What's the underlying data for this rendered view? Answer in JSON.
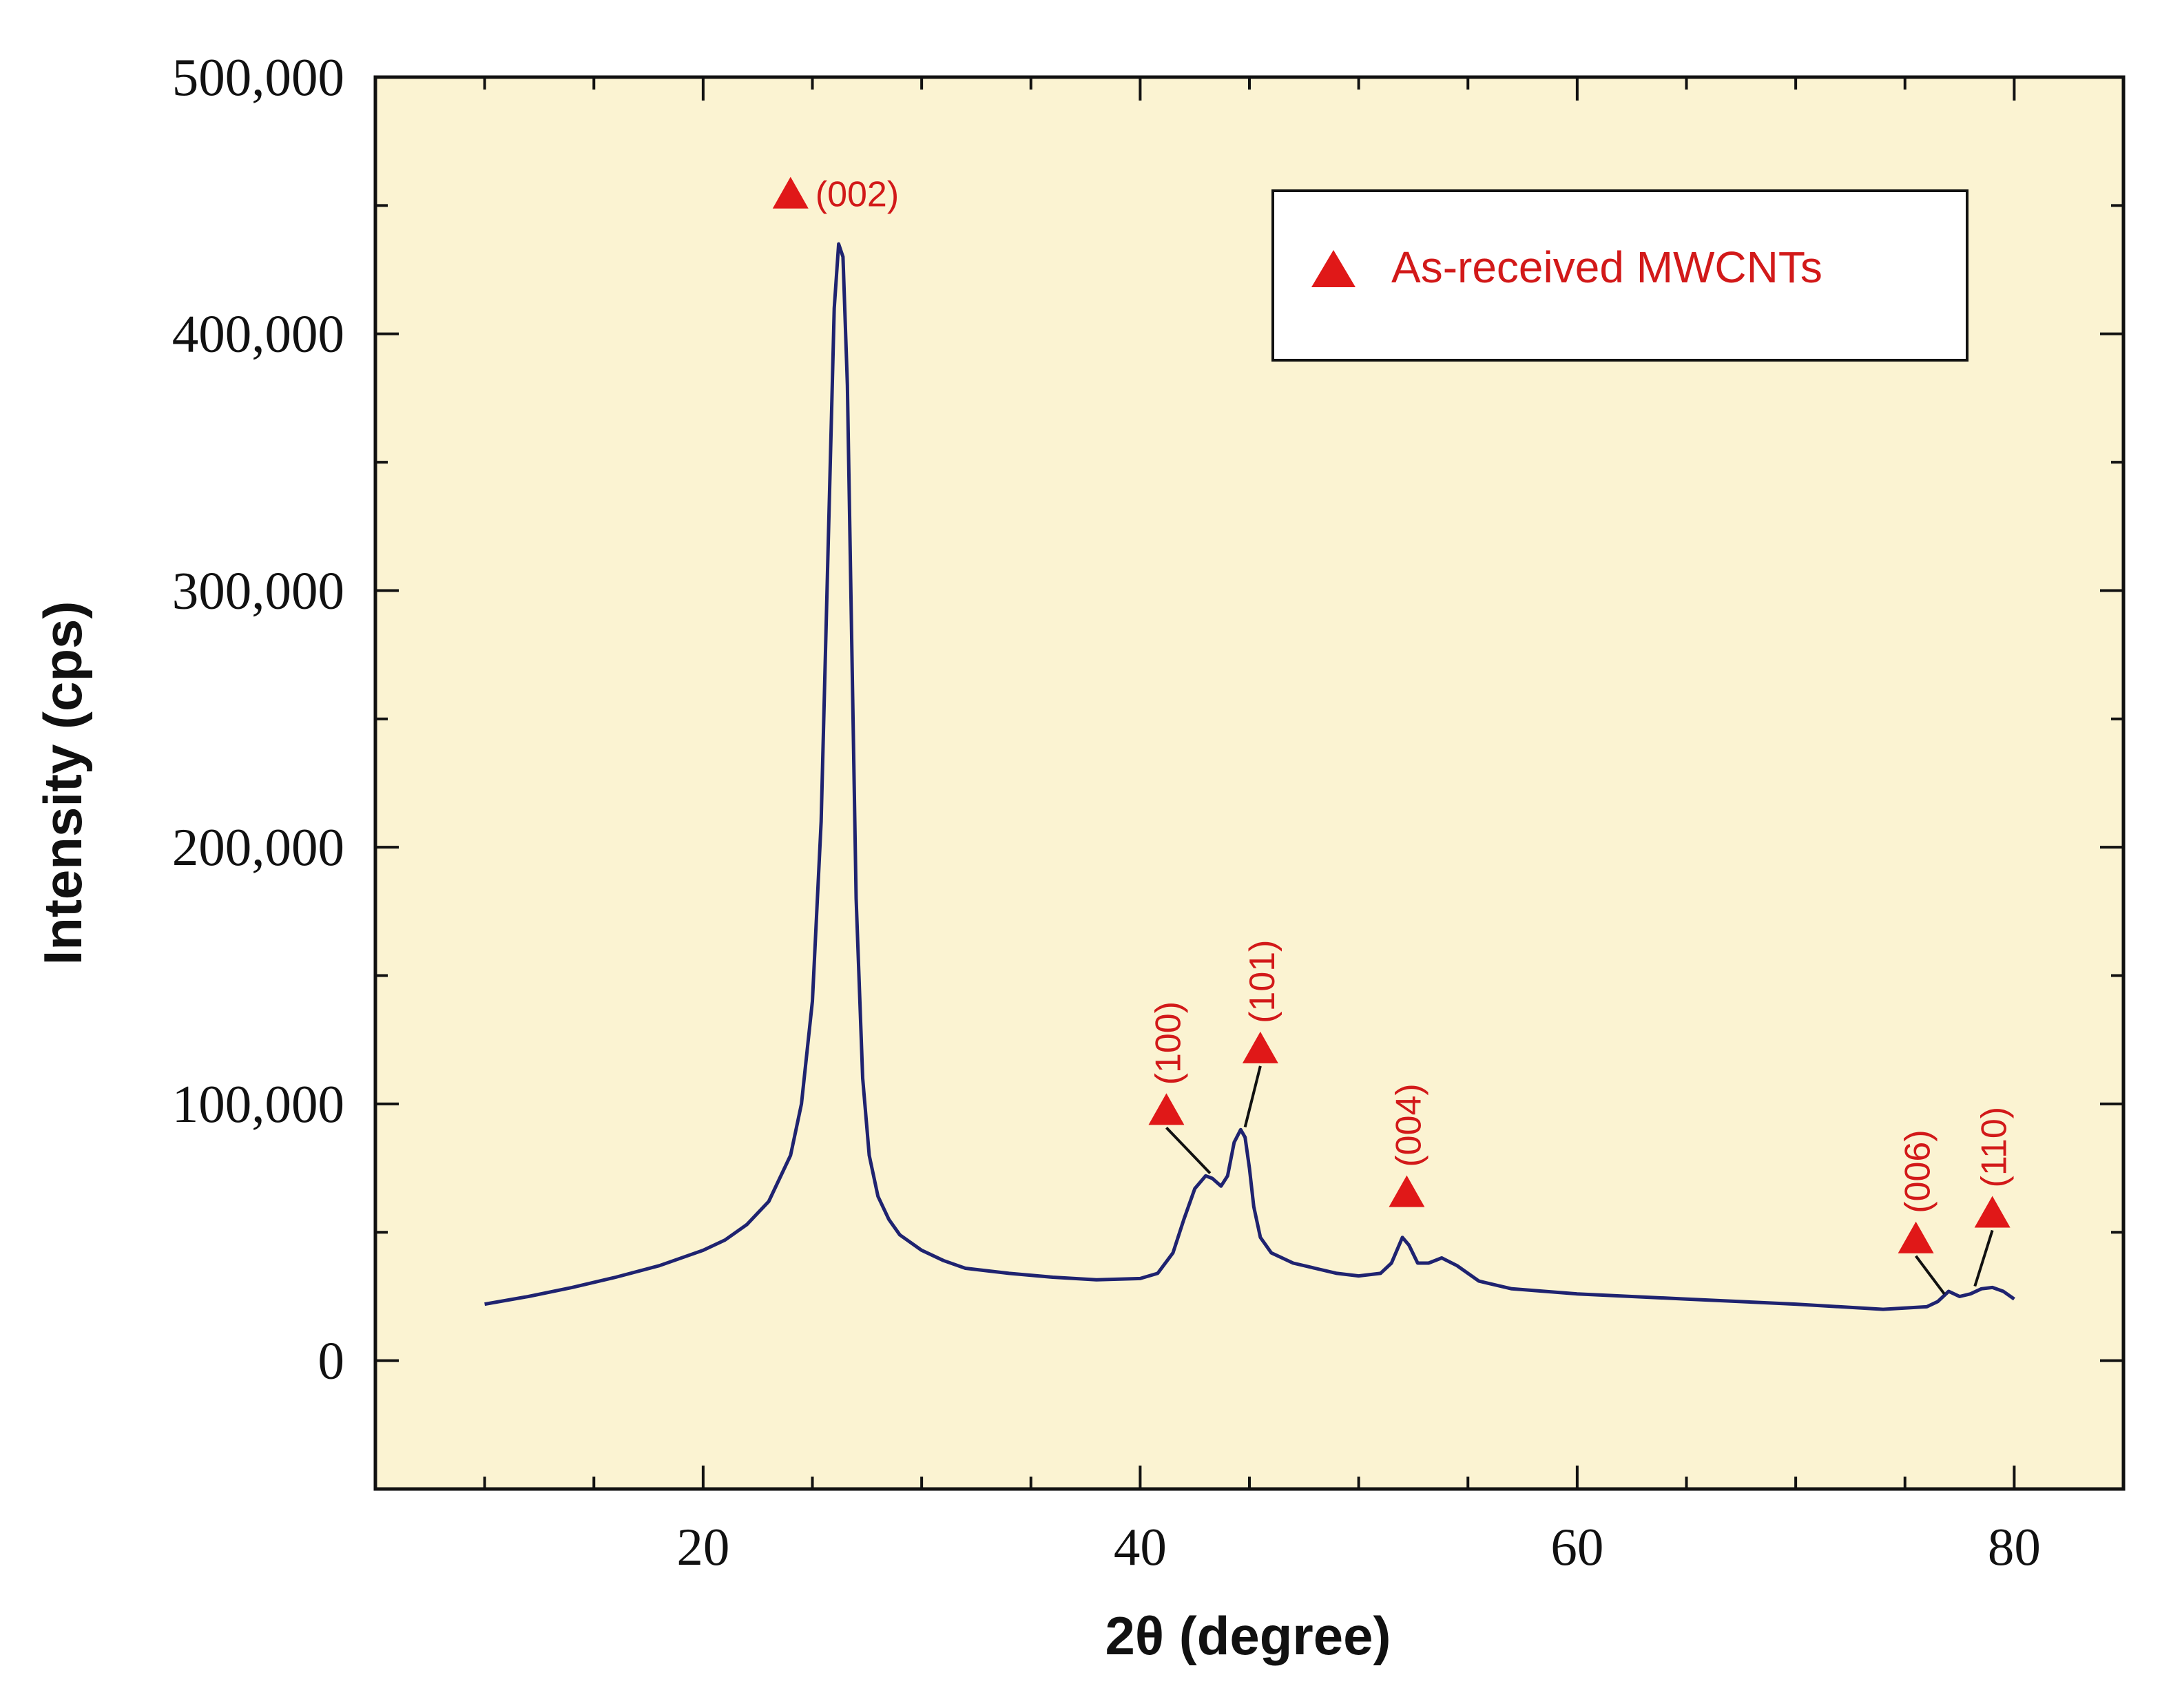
{
  "chart_data": {
    "type": "line",
    "title": "",
    "xlabel": "2θ (degree)",
    "ylabel": "Intensity (cps)",
    "xlim": [
      5,
      85
    ],
    "ylim": [
      -50000,
      500000
    ],
    "x_ticks": [
      20,
      40,
      60,
      80
    ],
    "x_tick_labels": [
      "20",
      "40",
      "60",
      "80"
    ],
    "y_ticks": [
      0,
      100000,
      200000,
      300000,
      400000,
      500000
    ],
    "y_tick_labels": [
      "0",
      "100,000",
      "200,000",
      "300,000",
      "400,000",
      "500,000"
    ],
    "grid": false,
    "background_color": "#fbf3d2",
    "line_color": "#1f2370",
    "marker_color": "#e01818",
    "series": [
      {
        "name": "As-received MWCNTs",
        "x": [
          10,
          12,
          14,
          16,
          18,
          20,
          21,
          22,
          23,
          24,
          24.5,
          25,
          25.4,
          25.7,
          26,
          26.2,
          26.4,
          26.6,
          26.8,
          27,
          27.3,
          27.6,
          28,
          28.5,
          29,
          30,
          31,
          32,
          34,
          36,
          38,
          40,
          40.8,
          41.5,
          42,
          42.5,
          43,
          43.3,
          43.7,
          44,
          44.3,
          44.6,
          44.8,
          45,
          45.2,
          45.5,
          46,
          47,
          48,
          49,
          50,
          51,
          51.5,
          52,
          52.3,
          52.7,
          53.2,
          53.8,
          54.5,
          55.5,
          57,
          60,
          65,
          70,
          74,
          76,
          76.5,
          77,
          77.5,
          78,
          78.5,
          79,
          79.5,
          80
        ],
        "y": [
          22000,
          25000,
          28500,
          32500,
          37000,
          43000,
          47000,
          53000,
          62000,
          80000,
          100000,
          140000,
          210000,
          310000,
          410000,
          435000,
          430000,
          380000,
          280000,
          180000,
          110000,
          80000,
          64000,
          55000,
          49000,
          43000,
          39000,
          36000,
          34000,
          32500,
          31500,
          32000,
          34000,
          42000,
          55000,
          67000,
          72000,
          71000,
          68000,
          72000,
          85000,
          90000,
          87000,
          75000,
          60000,
          48000,
          42000,
          38000,
          36000,
          34000,
          33000,
          34000,
          38000,
          48000,
          45000,
          38000,
          38000,
          40000,
          37000,
          31000,
          28000,
          26000,
          24000,
          22000,
          20000,
          21000,
          23000,
          27000,
          25000,
          26000,
          28000,
          28500,
          27000,
          24000
        ]
      }
    ],
    "peak_markers": [
      {
        "label": "(002)",
        "x": 24,
        "y": 455000,
        "orientation": "horizontal"
      },
      {
        "label": "(100)",
        "x": 41.2,
        "y": 98000,
        "orientation": "vertical",
        "leader_to": [
          43.2,
          73000
        ]
      },
      {
        "label": "(101)",
        "x": 45.5,
        "y": 122000,
        "orientation": "vertical",
        "leader_to": [
          44.8,
          91000
        ]
      },
      {
        "label": "(004)",
        "x": 52.2,
        "y": 66000,
        "orientation": "vertical"
      },
      {
        "label": "(006)",
        "x": 75.5,
        "y": 48000,
        "orientation": "vertical",
        "leader_to": [
          76.8,
          26000
        ]
      },
      {
        "label": "(110)",
        "x": 79,
        "y": 58000,
        "orientation": "vertical",
        "leader_to": [
          78.2,
          29000
        ]
      }
    ],
    "legend": {
      "position": "top-right",
      "entries": [
        "As-received MWCNTs"
      ]
    }
  }
}
